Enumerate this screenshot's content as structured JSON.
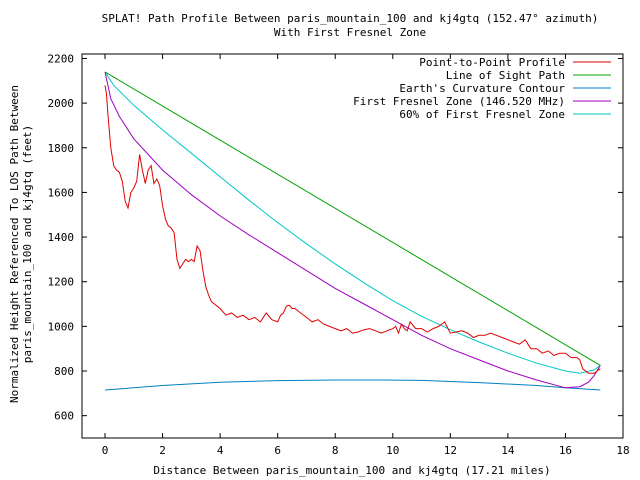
{
  "chart_data": {
    "type": "line",
    "title": "SPLAT! Path Profile Between paris_mountain_100 and kj4gtq (152.47° azimuth)",
    "subtitle": "With First Fresnel Zone",
    "xlabel": "Distance Between paris_mountain_100 and kj4gtq (17.21 miles)",
    "ylabel_line1": "Normalized Height Referenced To LOS Path Between",
    "ylabel_line2": "paris_mountain_100 and kj4gtq (feet)",
    "xlim": [
      -0.8,
      18
    ],
    "ylim": [
      500,
      2220
    ],
    "xticks": [
      0,
      2,
      4,
      6,
      8,
      10,
      12,
      14,
      16,
      18
    ],
    "yticks": [
      600,
      800,
      1000,
      1200,
      1400,
      1600,
      1800,
      2000,
      2200
    ],
    "grid": false,
    "legend_position": "top-right",
    "series": [
      {
        "name": "Point-to-Point Profile",
        "color": "#e00000",
        "x": [
          0,
          0.05,
          0.1,
          0.2,
          0.3,
          0.4,
          0.5,
          0.6,
          0.7,
          0.8,
          0.9,
          1.0,
          1.1,
          1.2,
          1.3,
          1.4,
          1.5,
          1.6,
          1.7,
          1.8,
          1.9,
          2.0,
          2.1,
          2.2,
          2.3,
          2.4,
          2.5,
          2.6,
          2.7,
          2.8,
          2.9,
          3.0,
          3.1,
          3.2,
          3.3,
          3.4,
          3.5,
          3.6,
          3.7,
          3.8,
          3.9,
          4.0,
          4.2,
          4.4,
          4.6,
          4.8,
          5.0,
          5.2,
          5.4,
          5.6,
          5.8,
          6.0,
          6.1,
          6.2,
          6.3,
          6.4,
          6.5,
          6.6,
          6.8,
          7.0,
          7.2,
          7.4,
          7.6,
          7.8,
          8.0,
          8.2,
          8.4,
          8.6,
          8.8,
          9.0,
          9.2,
          9.4,
          9.6,
          9.8,
          10.0,
          10.1,
          10.2,
          10.3,
          10.4,
          10.5,
          10.6,
          10.8,
          11.0,
          11.2,
          11.4,
          11.6,
          11.8,
          12.0,
          12.2,
          12.4,
          12.6,
          12.8,
          13.0,
          13.2,
          13.4,
          13.6,
          13.8,
          14.0,
          14.2,
          14.4,
          14.6,
          14.8,
          15.0,
          15.2,
          15.4,
          15.6,
          15.8,
          16.0,
          16.2,
          16.4,
          16.5,
          16.6,
          16.7,
          16.8,
          16.9,
          17.0,
          17.1,
          17.21
        ],
        "values": [
          2080,
          2040,
          1950,
          1800,
          1720,
          1700,
          1690,
          1650,
          1560,
          1530,
          1600,
          1620,
          1650,
          1770,
          1700,
          1640,
          1700,
          1720,
          1640,
          1660,
          1630,
          1540,
          1480,
          1450,
          1440,
          1420,
          1300,
          1260,
          1280,
          1300,
          1290,
          1300,
          1290,
          1360,
          1340,
          1250,
          1180,
          1140,
          1110,
          1100,
          1090,
          1080,
          1050,
          1060,
          1040,
          1050,
          1030,
          1040,
          1020,
          1060,
          1030,
          1020,
          1050,
          1060,
          1090,
          1095,
          1080,
          1080,
          1060,
          1040,
          1020,
          1030,
          1010,
          1000,
          990,
          980,
          990,
          970,
          975,
          985,
          990,
          980,
          970,
          980,
          990,
          1000,
          970,
          1010,
          990,
          980,
          1020,
          990,
          990,
          975,
          990,
          1000,
          1020,
          970,
          975,
          980,
          970,
          950,
          960,
          960,
          970,
          960,
          950,
          940,
          930,
          920,
          940,
          900,
          900,
          880,
          890,
          870,
          880,
          880,
          860,
          860,
          850,
          810,
          800,
          790,
          790,
          790,
          800,
          810
        ]
      },
      {
        "name": "Line of Sight Path",
        "color": "#00a000",
        "x": [
          0,
          17.21
        ],
        "values": [
          2140,
          825
        ]
      },
      {
        "name": "Earth's Curvature Contour",
        "color": "#0080c0",
        "x": [
          0,
          2,
          4,
          6,
          8,
          9.5,
          11,
          13,
          15,
          16,
          17.21
        ],
        "values": [
          715,
          735,
          750,
          757,
          760,
          760,
          758,
          748,
          735,
          725,
          715
        ]
      },
      {
        "name": "First Fresnel Zone (146.520 MHz)",
        "color": "#a000c0",
        "x": [
          0,
          0.2,
          0.5,
          1,
          2,
          3,
          4,
          5,
          6,
          7,
          8,
          9,
          10,
          11,
          12,
          13,
          14,
          15,
          16,
          16.5,
          16.8,
          17.0,
          17.21
        ],
        "values": [
          2140,
          2020,
          1940,
          1840,
          1700,
          1590,
          1495,
          1410,
          1330,
          1250,
          1170,
          1100,
          1030,
          960,
          900,
          850,
          800,
          760,
          725,
          730,
          750,
          780,
          825
        ]
      },
      {
        "name": "60% of First Fresnel Zone",
        "color": "#00c8c8",
        "x": [
          0,
          0.3,
          1,
          2,
          3,
          4,
          5,
          6,
          7,
          8,
          9,
          10,
          11,
          12,
          13,
          14,
          15,
          16,
          16.5,
          17.0,
          17.21
        ],
        "values": [
          2140,
          2080,
          1990,
          1880,
          1775,
          1670,
          1565,
          1465,
          1370,
          1280,
          1195,
          1115,
          1045,
          985,
          930,
          880,
          835,
          800,
          790,
          805,
          825
        ]
      }
    ]
  }
}
